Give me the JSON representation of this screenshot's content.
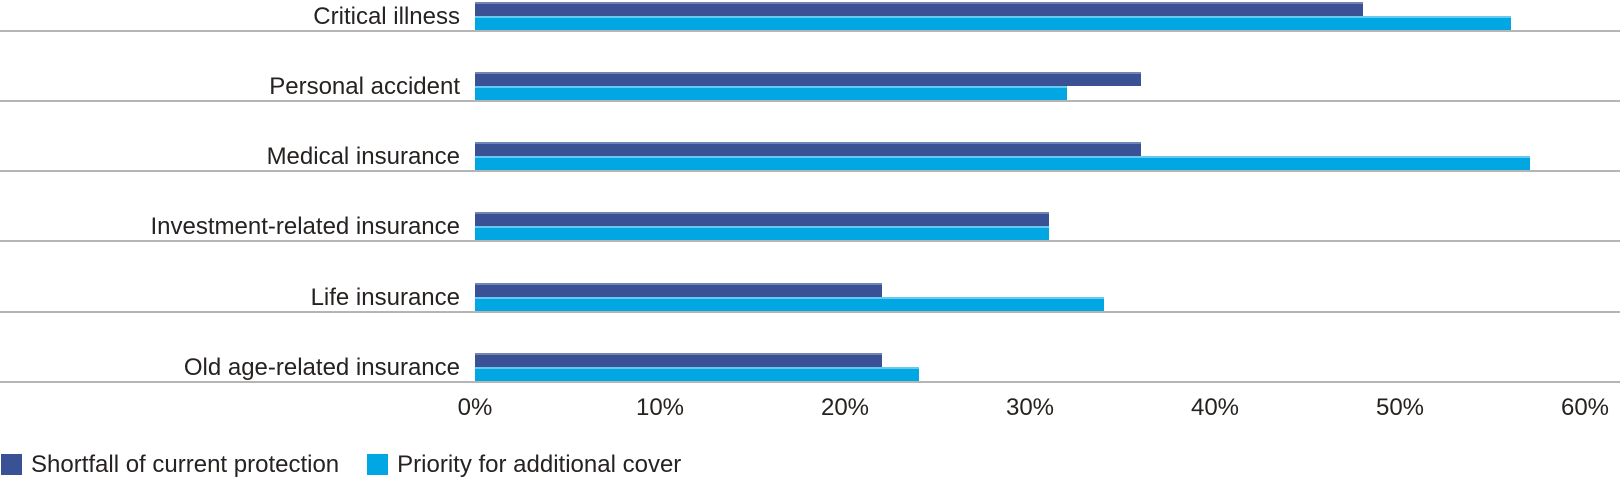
{
  "chart_data": {
    "type": "bar",
    "orientation": "horizontal",
    "title": "",
    "xlabel": "",
    "ylabel": "",
    "categories": [
      "Critical illness",
      "Personal accident",
      "Medical insurance",
      "Investment-related insurance",
      "Life insurance",
      "Old age-related insurance"
    ],
    "series": [
      {
        "name": "Shortfall of current protection",
        "values": [
          48,
          36,
          36,
          31,
          22,
          22
        ],
        "color": "#3A5295",
        "highlight": "#7284B3"
      },
      {
        "name": "Priority for additional cover",
        "values": [
          56,
          32,
          57,
          31,
          34,
          24
        ],
        "color": "#00A7E3",
        "highlight": "#66C9EF"
      }
    ],
    "xlim": [
      0,
      60
    ],
    "xticks": [
      0,
      10,
      20,
      30,
      40,
      50,
      60
    ],
    "xtick_labels": [
      "0%",
      "10%",
      "20%",
      "30%",
      "40%",
      "50%",
      "60%"
    ],
    "grid": "horizontal row separators only, no vertical gridlines",
    "legend_position": "bottom-left"
  },
  "style": {
    "separator_color": "#B5B5B5",
    "text_color": "#262220",
    "background": "#FFFFFF"
  }
}
